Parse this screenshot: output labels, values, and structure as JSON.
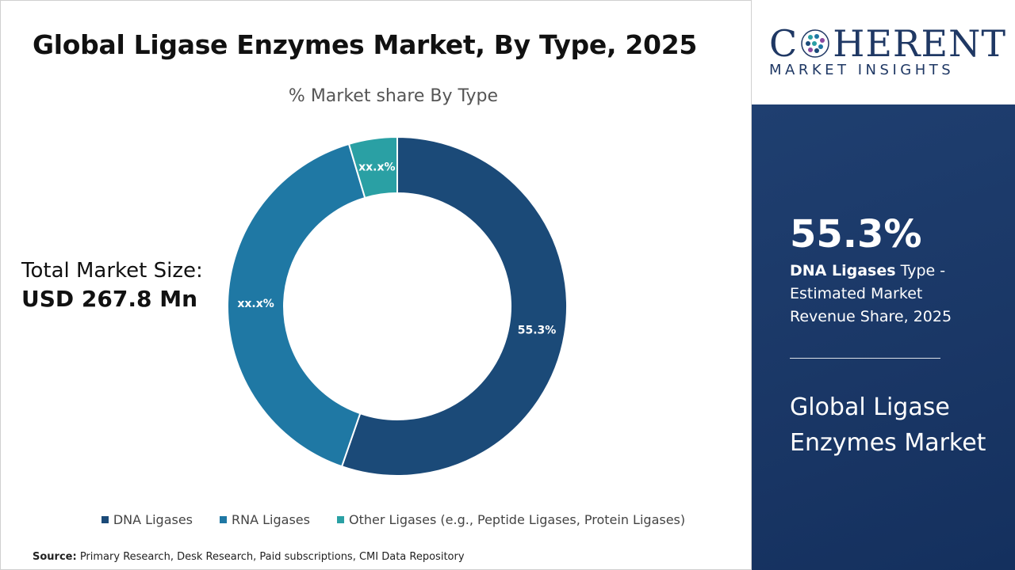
{
  "title": "Global Ligase Enzymes Market, By Type, 2025",
  "subtitle": "% Market share By Type",
  "total_market": {
    "label": "Total Market Size:",
    "value": "USD 267.8 Mn"
  },
  "chart_data": {
    "type": "pie",
    "subtype": "donut",
    "title": "% Market share By Type",
    "series": [
      {
        "name": "DNA Ligases",
        "value": 55.3,
        "label": "55.3%",
        "color": "#1b4a78"
      },
      {
        "name": "RNA Ligases",
        "value": 40.1,
        "label": "xx.x%",
        "color": "#1f78a4"
      },
      {
        "name": "Other Ligases (e.g., Peptide Ligases, Protein Ligases)",
        "value": 4.6,
        "label": "xx.x%",
        "color": "#2aa0a4"
      }
    ],
    "start_angle_deg": 0,
    "direction": "clockwise",
    "legend_position": "bottom"
  },
  "source": {
    "label": "Source:",
    "text": " Primary Research, Desk Research, Paid subscriptions, CMI Data Repository"
  },
  "logo": {
    "word_left": "C",
    "word_right": "HERENT",
    "tagline": "MARKET INSIGHTS"
  },
  "highlight": {
    "percent": "55.3%",
    "segment": "DNA Ligases",
    "description": " Type - Estimated Market Revenue Share, 2025",
    "market_name": "Global Ligase Enzymes Market"
  },
  "colors": {
    "panel_blue": "#1a3766",
    "brand_navy": "#1f3864"
  }
}
